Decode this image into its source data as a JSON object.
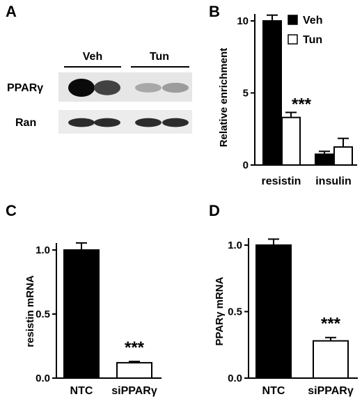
{
  "panel_labels": [
    "A",
    "B",
    "C",
    "D"
  ],
  "blot": {
    "groups": [
      "Veh",
      "Tun"
    ],
    "rows": [
      "PPARγ",
      "Ran"
    ],
    "ppar_intensity": [
      1.0,
      0.75,
      0.3,
      0.35
    ],
    "ran_intensity": [
      0.85,
      0.85,
      0.85,
      0.85
    ]
  },
  "chart_data": [
    {
      "panel": "B",
      "type": "bar",
      "categories": [
        "resistin",
        "insulin"
      ],
      "series": [
        {
          "name": "Veh",
          "values": [
            10.0,
            0.75
          ],
          "errors": [
            0.4,
            0.2
          ],
          "fill": "#000000"
        },
        {
          "name": "Tun",
          "values": [
            3.3,
            1.25
          ],
          "errors": [
            0.35,
            0.6
          ],
          "fill": "#ffffff"
        }
      ],
      "ylabel": "Relative enrichment",
      "ylim": [
        0,
        10
      ],
      "yticks": [
        0,
        5,
        10
      ],
      "annotation": "***",
      "legend": "top-right"
    },
    {
      "panel": "C",
      "type": "bar",
      "categories": [
        "NTC",
        "siPPARγ"
      ],
      "series": [
        {
          "values": [
            1.0,
            0.12
          ],
          "errors": [
            0.055,
            0.01
          ],
          "fills": [
            "#000000",
            "#ffffff"
          ]
        }
      ],
      "ylabel": "resistin mRNA",
      "ylim": [
        0,
        1.0
      ],
      "yticks": [
        "0.0",
        "0.5",
        "1.0"
      ],
      "annotation": "***"
    },
    {
      "panel": "D",
      "type": "bar",
      "categories": [
        "NTC",
        "siPPARγ"
      ],
      "series": [
        {
          "values": [
            1.0,
            0.28
          ],
          "errors": [
            0.045,
            0.025
          ],
          "fills": [
            "#000000",
            "#ffffff"
          ]
        }
      ],
      "ylabel": "PPARγ mRNA",
      "ylim": [
        0,
        1.0
      ],
      "yticks": [
        "0.0",
        "0.5",
        "1.0"
      ],
      "annotation": "***"
    }
  ]
}
